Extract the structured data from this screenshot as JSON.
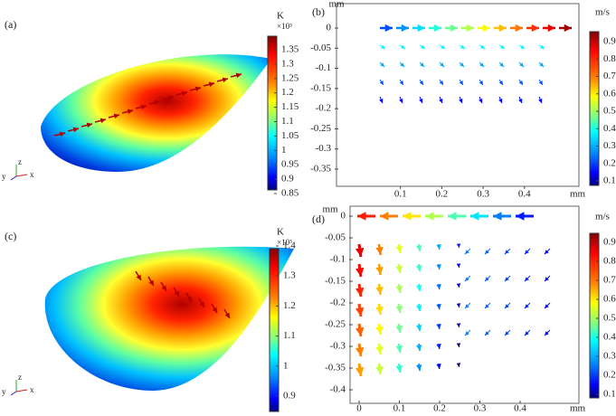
{
  "panels": [
    {
      "label": "(a)",
      "colorbar": {
        "unit": "K",
        "scale": "×10³",
        "ticks": [
          1.35,
          1.3,
          1.25,
          1.2,
          1.15,
          1.1,
          1.05,
          1,
          0.95,
          0.9,
          0.85
        ]
      },
      "axes": [
        "y",
        "z",
        "x"
      ]
    },
    {
      "label": "(b)",
      "x_unit": "mm",
      "y_unit": "mm",
      "xticks": [
        0.1,
        0.2,
        0.3,
        0.4
      ],
      "yticks": [
        0,
        -0.05,
        -0.1,
        -0.15,
        -0.2,
        -0.25,
        -0.3,
        -0.35
      ],
      "colorbar": {
        "unit": "m/s",
        "ticks": [
          0.9,
          0.8,
          0.7,
          0.6,
          0.5,
          0.4,
          0.3,
          0.2,
          0.1
        ]
      }
    },
    {
      "label": "(c)",
      "colorbar": {
        "unit": "K",
        "scale": "×10³",
        "ticks": [
          1.4,
          1.3,
          1.2,
          1.1,
          1,
          0.9
        ]
      },
      "axes": [
        "y",
        "z",
        "x"
      ]
    },
    {
      "label": "(d)",
      "x_unit": "mm",
      "y_unit": "mm",
      "xticks": [
        0,
        0.1,
        0.2,
        0.3,
        0.4
      ],
      "yticks": [
        0,
        -0.05,
        -0.1,
        -0.15,
        -0.2,
        -0.25,
        -0.3,
        -0.35,
        -0.4
      ],
      "colorbar": {
        "unit": "m/s",
        "ticks": [
          0.9,
          0.8,
          0.7,
          0.6,
          0.5,
          0.4,
          0.3,
          0.2,
          0.1
        ]
      }
    }
  ]
}
